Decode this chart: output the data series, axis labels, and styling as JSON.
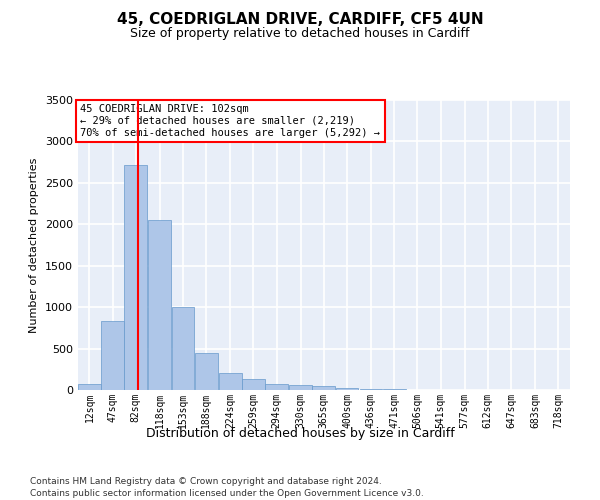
{
  "title_line1": "45, COEDRIGLAN DRIVE, CARDIFF, CF5 4UN",
  "title_line2": "Size of property relative to detached houses in Cardiff",
  "xlabel": "Distribution of detached houses by size in Cardiff",
  "ylabel": "Number of detached properties",
  "annotation_line1": "45 COEDRIGLAN DRIVE: 102sqm",
  "annotation_line2": "← 29% of detached houses are smaller (2,219)",
  "annotation_line3": "70% of semi-detached houses are larger (5,292) →",
  "footer_line1": "Contains HM Land Registry data © Crown copyright and database right 2024.",
  "footer_line2": "Contains public sector information licensed under the Open Government Licence v3.0.",
  "bar_color": "#aec6e8",
  "bar_edge_color": "#6699cc",
  "background_color": "#e8eef8",
  "grid_color": "#ffffff",
  "redline_x": 102,
  "categories": [
    "12sqm",
    "47sqm",
    "82sqm",
    "118sqm",
    "153sqm",
    "188sqm",
    "224sqm",
    "259sqm",
    "294sqm",
    "330sqm",
    "365sqm",
    "400sqm",
    "436sqm",
    "471sqm",
    "506sqm",
    "541sqm",
    "577sqm",
    "612sqm",
    "647sqm",
    "683sqm",
    "718sqm"
  ],
  "bin_starts": [
    12,
    47,
    82,
    118,
    153,
    188,
    224,
    259,
    294,
    330,
    365,
    400,
    436,
    471,
    506,
    541,
    577,
    612,
    647,
    683,
    718
  ],
  "bin_width": 35,
  "values": [
    75,
    830,
    2720,
    2050,
    1000,
    450,
    210,
    135,
    75,
    55,
    45,
    25,
    12,
    8,
    5,
    3,
    2,
    1,
    1,
    1,
    1
  ],
  "ylim": [
    0,
    3500
  ],
  "yticks": [
    0,
    500,
    1000,
    1500,
    2000,
    2500,
    3000,
    3500
  ]
}
